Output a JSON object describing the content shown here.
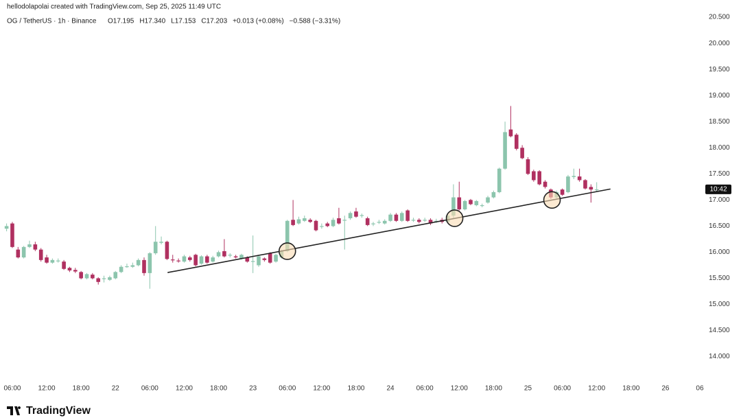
{
  "chart_data": {
    "type": "candlestick",
    "attribution": "hellodolapolai created with TradingView.com, Sep 25, 2025 11:49 UTC",
    "symbol": "OG / TetherUS · 1h · Binance",
    "header_values": [
      "O17.195",
      "H17.340",
      "L17.153",
      "C17.203",
      "+0.013 (+0.08%)",
      "−0.588 (−3.31%)"
    ],
    "logo": "TradingView",
    "countdown": "10:42",
    "up_color": "#8cc5ad",
    "down_color": "#b03060",
    "xlim": [
      -1.15,
      121.6
    ],
    "xticks": [
      {
        "value": 1,
        "label": "06:00"
      },
      {
        "value": 7,
        "label": "12:00"
      },
      {
        "value": 13,
        "label": "18:00"
      },
      {
        "value": 19,
        "label": "22"
      },
      {
        "value": 25,
        "label": "06:00"
      },
      {
        "value": 31,
        "label": "12:00"
      },
      {
        "value": 37,
        "label": "18:00"
      },
      {
        "value": 43,
        "label": "23"
      },
      {
        "value": 49,
        "label": "06:00"
      },
      {
        "value": 55,
        "label": "12:00"
      },
      {
        "value": 61,
        "label": "18:00"
      },
      {
        "value": 67,
        "label": "24"
      },
      {
        "value": 73,
        "label": "06:00"
      },
      {
        "value": 79,
        "label": "12:00"
      },
      {
        "value": 85,
        "label": "18:00"
      },
      {
        "value": 91,
        "label": "25"
      },
      {
        "value": 97,
        "label": "06:00"
      },
      {
        "value": 103,
        "label": "12:00"
      },
      {
        "value": 109,
        "label": "18:00"
      },
      {
        "value": 115,
        "label": "26"
      },
      {
        "value": 121,
        "label": "06"
      }
    ],
    "ylim": [
      13.6,
      20.83
    ],
    "yticks": [
      {
        "value": 14,
        "label": "14.000"
      },
      {
        "value": 14.5,
        "label": "14.500"
      },
      {
        "value": 15,
        "label": "15.000"
      },
      {
        "value": 15.5,
        "label": "15.500"
      },
      {
        "value": 16,
        "label": "16.000"
      },
      {
        "value": 16.5,
        "label": "16.500"
      },
      {
        "value": 17,
        "label": "17.000"
      },
      {
        "value": 17.5,
        "label": "17.500"
      },
      {
        "value": 18,
        "label": "18.000"
      },
      {
        "value": 18.5,
        "label": "18.500"
      },
      {
        "value": 19,
        "label": "19.000"
      },
      {
        "value": 19.5,
        "label": "19.500"
      },
      {
        "value": 20,
        "label": "20.000"
      },
      {
        "value": 20.5,
        "label": "20.500"
      }
    ],
    "open": [
      16.45,
      16.55,
      16.05,
      15.9,
      16.1,
      16.15,
      16.05,
      15.9,
      15.8,
      15.83,
      15.82,
      15.7,
      15.66,
      15.62,
      15.5,
      15.57,
      15.5,
      15.49,
      15.47,
      15.5,
      15.62,
      15.72,
      15.72,
      15.75,
      15.85,
      15.6,
      15.98,
      16.18,
      16.2,
      15.86,
      15.84,
      15.82,
      15.9,
      15.95,
      15.78,
      15.92,
      15.82,
      15.92,
      16.02,
      15.94,
      15.92,
      15.88,
      15.9,
      15.82,
      15.75,
      15.88,
      15.98,
      15.82,
      15.9,
      16.02,
      16.62,
      16.55,
      16.6,
      16.62,
      16.6,
      16.49,
      16.55,
      16.5,
      16.65,
      16.61,
      16.65,
      16.78,
      16.7,
      16.65,
      16.54,
      16.57,
      16.55,
      16.6,
      16.72,
      16.6,
      16.8,
      16.61,
      16.62,
      16.61,
      16.62,
      16.59,
      16.62,
      16.58,
      16.7,
      17.05,
      16.82,
      17.0,
      16.9,
      16.89,
      16.95,
      17.05,
      17.15,
      17.6,
      18.35,
      18.25,
      18.0,
      17.78,
      17.55,
      17.55,
      17.35,
      17.2,
      17.05,
      17.2,
      17.15,
      17.44,
      17.45,
      17.38,
      17.25,
      17.195
    ],
    "high": [
      16.55,
      16.58,
      16.1,
      16.12,
      16.22,
      16.2,
      16.08,
      15.95,
      15.88,
      15.88,
      15.85,
      15.72,
      15.7,
      15.64,
      15.6,
      15.6,
      15.52,
      15.55,
      15.55,
      15.64,
      15.75,
      15.78,
      15.8,
      15.88,
      15.9,
      16.0,
      16.5,
      16.3,
      16.22,
      15.95,
      15.88,
      15.95,
      15.93,
      15.97,
      15.94,
      15.95,
      15.93,
      16.03,
      16.25,
      15.98,
      15.95,
      15.97,
      15.92,
      16.32,
      15.94,
      15.9,
      16.0,
      15.97,
      16.05,
      16.62,
      17.0,
      16.68,
      16.7,
      16.65,
      16.62,
      16.55,
      16.58,
      16.66,
      16.85,
      16.7,
      16.78,
      16.85,
      16.74,
      16.68,
      16.58,
      16.62,
      16.63,
      16.75,
      16.75,
      16.78,
      16.82,
      16.66,
      16.65,
      16.66,
      16.65,
      16.64,
      16.66,
      16.72,
      17.3,
      17.35,
      17.0,
      17.02,
      17.0,
      16.93,
      17.08,
      17.18,
      17.62,
      18.5,
      18.8,
      18.28,
      18.05,
      17.82,
      17.58,
      17.57,
      17.38,
      17.22,
      17.18,
      17.22,
      17.48,
      17.6,
      17.6,
      17.4,
      17.3,
      17.34
    ],
    "low": [
      16.4,
      16.08,
      15.88,
      15.88,
      16.08,
      16.02,
      15.82,
      15.78,
      15.78,
      15.8,
      15.66,
      15.62,
      15.6,
      15.48,
      15.48,
      15.48,
      15.38,
      15.42,
      15.45,
      15.48,
      15.6,
      15.7,
      15.7,
      15.73,
      15.55,
      15.3,
      15.95,
      16.15,
      15.85,
      15.8,
      15.8,
      15.8,
      15.82,
      15.73,
      15.76,
      15.78,
      15.8,
      15.9,
      15.9,
      15.9,
      15.88,
      15.86,
      15.8,
      15.6,
      15.72,
      15.82,
      15.78,
      15.8,
      15.88,
      16.0,
      16.5,
      16.53,
      16.58,
      16.56,
      16.4,
      16.45,
      16.48,
      16.48,
      16.53,
      16.05,
      16.62,
      16.66,
      16.66,
      16.5,
      16.5,
      16.54,
      16.53,
      16.58,
      16.58,
      16.58,
      16.58,
      16.58,
      16.55,
      16.58,
      16.52,
      16.56,
      16.55,
      16.55,
      16.65,
      16.8,
      16.8,
      16.9,
      16.88,
      16.86,
      16.93,
      17.03,
      17.13,
      17.58,
      18.2,
      17.95,
      17.78,
      17.48,
      17.35,
      17.28,
      17.22,
      17.02,
      17.03,
      17.08,
      17.13,
      17.4,
      17.35,
      17.2,
      16.95,
      17.153
    ],
    "close": [
      16.5,
      16.1,
      15.9,
      16.1,
      16.15,
      16.05,
      15.85,
      15.8,
      15.85,
      15.84,
      15.68,
      15.65,
      15.63,
      15.5,
      15.58,
      15.5,
      15.43,
      15.5,
      15.52,
      15.62,
      15.72,
      15.73,
      15.75,
      15.85,
      15.6,
      15.98,
      16.2,
      16.2,
      15.87,
      15.85,
      15.83,
      15.92,
      15.85,
      15.75,
      15.92,
      15.8,
      15.9,
      16.0,
      15.92,
      15.95,
      15.9,
      15.95,
      15.82,
      15.83,
      15.92,
      15.85,
      15.8,
      15.95,
      16.02,
      16.6,
      16.52,
      16.63,
      16.65,
      16.58,
      16.42,
      16.5,
      16.5,
      16.62,
      16.55,
      16.62,
      16.75,
      16.68,
      16.71,
      16.52,
      16.55,
      16.58,
      16.6,
      16.72,
      16.6,
      16.75,
      16.6,
      16.62,
      16.58,
      16.62,
      16.55,
      16.6,
      16.58,
      16.7,
      17.05,
      16.82,
      16.98,
      16.92,
      16.98,
      16.9,
      17.05,
      17.15,
      17.6,
      18.3,
      18.22,
      17.98,
      17.8,
      17.5,
      17.38,
      17.3,
      17.25,
      17.05,
      17.15,
      17.1,
      17.45,
      17.46,
      17.38,
      17.22,
      17.2,
      17.203
    ],
    "trendline": [
      [
        28.1,
        15.61
      ],
      [
        105.4,
        17.21
      ]
    ],
    "highlights": [
      [
        49,
        16.02
      ],
      [
        78.2,
        16.65
      ],
      [
        95.2,
        17.0
      ]
    ]
  }
}
